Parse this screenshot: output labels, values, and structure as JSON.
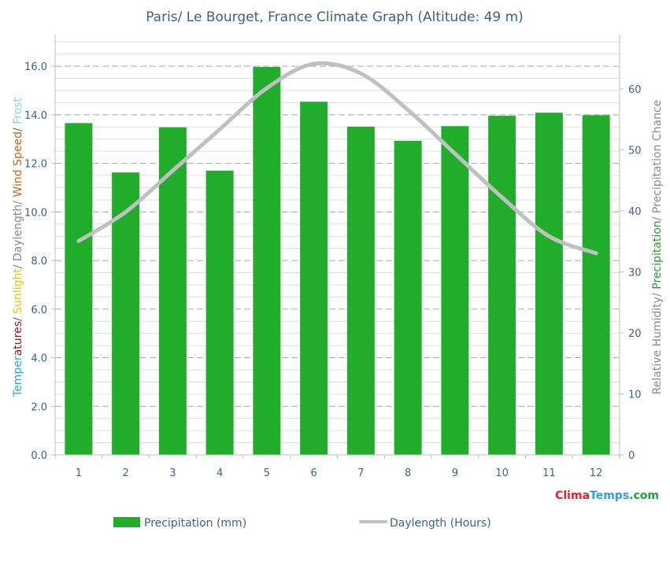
{
  "title": "Paris/ Le Bourget, France Climate Graph (Altitude: 49 m)",
  "watermark": {
    "part1": "Clima",
    "part2": "Temps",
    "part3": ".com",
    "colors": {
      "part1": "#e8202a",
      "part2": "#2aa1d8",
      "part3": "#1aa33a"
    }
  },
  "left_axis_label": [
    {
      "text": "Temperatures",
      "color": "#29a8e0",
      "split": 6
    },
    {
      "text": "/ ",
      "color": "#666666"
    },
    {
      "text": "Sunlight",
      "color": "#f2c200"
    },
    {
      "text": "/ Daylength/ ",
      "color": "#8a8a8a"
    },
    {
      "text": "Wind Speed",
      "color": "#c46a1a"
    },
    {
      "text": "/ ",
      "color": "#666666"
    },
    {
      "text": "Frost",
      "color": "#8ad2e8"
    }
  ],
  "right_axis_label": [
    {
      "text": "Relative Humidity",
      "color": "#8a8a8a"
    },
    {
      "text": "/ ",
      "color": "#8a8a8a"
    },
    {
      "text": "Precipitation",
      "color": "#2a9a2a"
    },
    {
      "text": "/ Precipitation Chance",
      "color": "#8a8a8a"
    }
  ],
  "legend": [
    {
      "name": "Precipitation (mm)",
      "kind": "bar",
      "color": "#21ad2b"
    },
    {
      "name": "Daylength (Hours)",
      "kind": "line",
      "color": "#c0c0c0"
    }
  ],
  "chart_data": {
    "type": "bar",
    "categories": [
      "1",
      "2",
      "3",
      "4",
      "5",
      "6",
      "7",
      "8",
      "9",
      "10",
      "11",
      "12"
    ],
    "series": [
      {
        "name": "Precipitation (mm)",
        "type": "bar",
        "axis": "right",
        "color": "#21ad2b",
        "values": [
          54.4,
          46.3,
          53.7,
          46.6,
          63.6,
          57.9,
          53.8,
          51.5,
          53.9,
          55.6,
          56.1,
          55.7
        ]
      },
      {
        "name": "Daylength (Hours)",
        "type": "line",
        "axis": "left",
        "color": "#c0c0c0",
        "values": [
          8.8,
          10.0,
          11.7,
          13.4,
          15.1,
          16.1,
          15.7,
          14.2,
          12.4,
          10.6,
          9.0,
          8.3
        ]
      }
    ],
    "y_left": {
      "ticks": [
        "0.0",
        "2.0",
        "4.0",
        "6.0",
        "8.0",
        "10.0",
        "12.0",
        "14.0",
        "16.0"
      ],
      "range": [
        0,
        17.3
      ]
    },
    "y_right": {
      "ticks": [
        "0",
        "10",
        "20",
        "30",
        "40",
        "50",
        "60"
      ],
      "range": [
        0,
        68.9
      ]
    },
    "grid": true,
    "legend_position": "bottom"
  }
}
